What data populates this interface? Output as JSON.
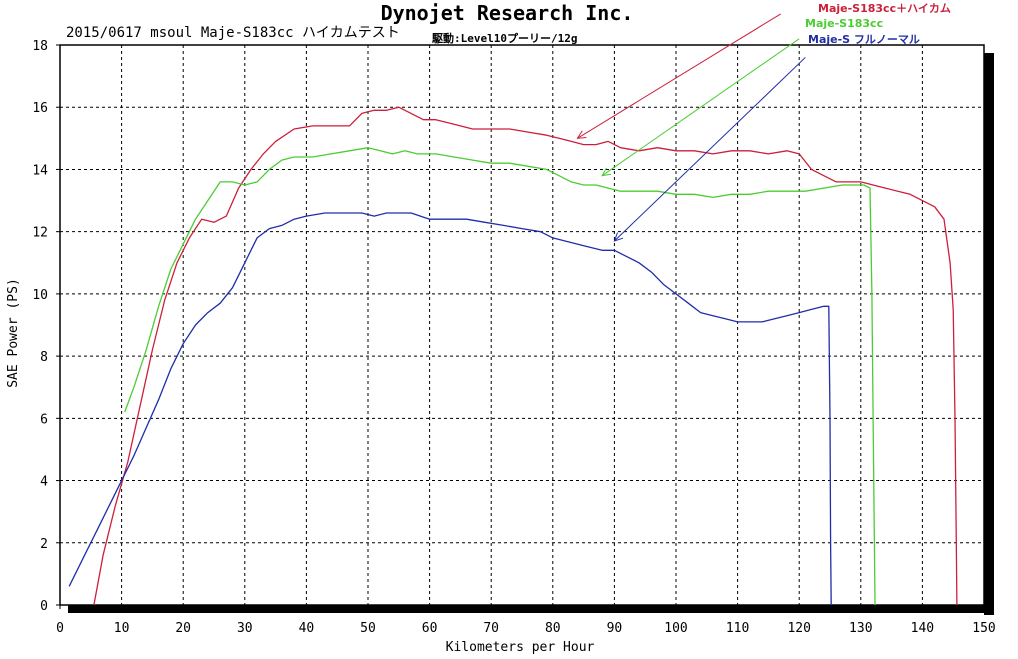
{
  "chart_data": {
    "type": "line",
    "title": "Dynojet  Research  Inc.",
    "subtitle": "2015/0617 msoul Maje-S183cc ハイカムテスト",
    "subtitle2": "駆動:Level10プーリー/12g",
    "xlabel": "Kilometers per Hour",
    "ylabel": "SAE Power (PS)",
    "xlim": [
      0,
      150
    ],
    "ylim": [
      0,
      18
    ],
    "xticks": [
      0,
      10,
      20,
      30,
      40,
      50,
      60,
      70,
      80,
      90,
      100,
      110,
      120,
      130,
      140,
      150
    ],
    "yticks": [
      0,
      2,
      4,
      6,
      8,
      10,
      12,
      14,
      16,
      18
    ],
    "grid": true,
    "legend_position": "top-right",
    "series": [
      {
        "name": "Maje-S183cc＋ハイカム",
        "color": "#cc1f3a",
        "points": [
          [
            5.5,
            0
          ],
          [
            7,
            1.6
          ],
          [
            9,
            3.2
          ],
          [
            11,
            4.6
          ],
          [
            13,
            6.4
          ],
          [
            15,
            8.2
          ],
          [
            17,
            9.8
          ],
          [
            19,
            11
          ],
          [
            21,
            11.8
          ],
          [
            23,
            12.4
          ],
          [
            25,
            12.3
          ],
          [
            27,
            12.5
          ],
          [
            29,
            13.4
          ],
          [
            31,
            14.0
          ],
          [
            33,
            14.5
          ],
          [
            35,
            14.9
          ],
          [
            38,
            15.3
          ],
          [
            41,
            15.4
          ],
          [
            44,
            15.4
          ],
          [
            47,
            15.4
          ],
          [
            49,
            15.8
          ],
          [
            51,
            15.9
          ],
          [
            53,
            15.9
          ],
          [
            55,
            16.0
          ],
          [
            57,
            15.8
          ],
          [
            59,
            15.6
          ],
          [
            61,
            15.6
          ],
          [
            63,
            15.5
          ],
          [
            65,
            15.4
          ],
          [
            67,
            15.3
          ],
          [
            70,
            15.3
          ],
          [
            73,
            15.3
          ],
          [
            76,
            15.2
          ],
          [
            79,
            15.1
          ],
          [
            81,
            15.0
          ],
          [
            83,
            14.9
          ],
          [
            85,
            14.8
          ],
          [
            87,
            14.8
          ],
          [
            89,
            14.9
          ],
          [
            91,
            14.7
          ],
          [
            94,
            14.6
          ],
          [
            97,
            14.7
          ],
          [
            100,
            14.6
          ],
          [
            103,
            14.6
          ],
          [
            106,
            14.5
          ],
          [
            109,
            14.6
          ],
          [
            112,
            14.6
          ],
          [
            115,
            14.5
          ],
          [
            118,
            14.6
          ],
          [
            120,
            14.5
          ],
          [
            122,
            14.0
          ],
          [
            124,
            13.8
          ],
          [
            126,
            13.6
          ],
          [
            128,
            13.6
          ],
          [
            130,
            13.6
          ],
          [
            132,
            13.5
          ],
          [
            134,
            13.4
          ],
          [
            136,
            13.3
          ],
          [
            138,
            13.2
          ],
          [
            140,
            13.0
          ],
          [
            142,
            12.8
          ],
          [
            143.5,
            12.4
          ],
          [
            144.5,
            11.0
          ],
          [
            145,
            9.5
          ],
          [
            145.3,
            6
          ],
          [
            145.5,
            2
          ],
          [
            145.6,
            0
          ]
        ]
      },
      {
        "name": "Maje-S183cc",
        "color": "#4ccc33",
        "points": [
          [
            10.5,
            6.2
          ],
          [
            12,
            7.0
          ],
          [
            14,
            8.2
          ],
          [
            16,
            9.6
          ],
          [
            18,
            10.8
          ],
          [
            20,
            11.6
          ],
          [
            22,
            12.4
          ],
          [
            24,
            13.0
          ],
          [
            26,
            13.6
          ],
          [
            28,
            13.6
          ],
          [
            30,
            13.5
          ],
          [
            32,
            13.6
          ],
          [
            34,
            14.0
          ],
          [
            36,
            14.3
          ],
          [
            38,
            14.4
          ],
          [
            41,
            14.4
          ],
          [
            44,
            14.5
          ],
          [
            47,
            14.6
          ],
          [
            50,
            14.7
          ],
          [
            52,
            14.6
          ],
          [
            54,
            14.5
          ],
          [
            56,
            14.6
          ],
          [
            58,
            14.5
          ],
          [
            61,
            14.5
          ],
          [
            64,
            14.4
          ],
          [
            67,
            14.3
          ],
          [
            70,
            14.2
          ],
          [
            73,
            14.2
          ],
          [
            76,
            14.1
          ],
          [
            79,
            14.0
          ],
          [
            81,
            13.8
          ],
          [
            83,
            13.6
          ],
          [
            85,
            13.5
          ],
          [
            87,
            13.5
          ],
          [
            89,
            13.4
          ],
          [
            91,
            13.3
          ],
          [
            94,
            13.3
          ],
          [
            97,
            13.3
          ],
          [
            100,
            13.2
          ],
          [
            103,
            13.2
          ],
          [
            106,
            13.1
          ],
          [
            109,
            13.2
          ],
          [
            112,
            13.2
          ],
          [
            115,
            13.3
          ],
          [
            118,
            13.3
          ],
          [
            121,
            13.3
          ],
          [
            124,
            13.4
          ],
          [
            127,
            13.5
          ],
          [
            129,
            13.5
          ],
          [
            130.5,
            13.5
          ],
          [
            131.5,
            13.4
          ],
          [
            131.8,
            10
          ],
          [
            132,
            6
          ],
          [
            132.2,
            2
          ],
          [
            132.3,
            0
          ]
        ]
      },
      {
        "name": "Maje-S フルノーマル",
        "color": "#1f2ea8",
        "points": [
          [
            1.5,
            0.6
          ],
          [
            4,
            1.6
          ],
          [
            6,
            2.4
          ],
          [
            8,
            3.2
          ],
          [
            10,
            4.0
          ],
          [
            12,
            4.8
          ],
          [
            14,
            5.7
          ],
          [
            16,
            6.6
          ],
          [
            18,
            7.6
          ],
          [
            20,
            8.4
          ],
          [
            22,
            9.0
          ],
          [
            24,
            9.4
          ],
          [
            26,
            9.7
          ],
          [
            28,
            10.2
          ],
          [
            30,
            11.0
          ],
          [
            32,
            11.8
          ],
          [
            34,
            12.1
          ],
          [
            36,
            12.2
          ],
          [
            38,
            12.4
          ],
          [
            40,
            12.5
          ],
          [
            43,
            12.6
          ],
          [
            46,
            12.6
          ],
          [
            49,
            12.6
          ],
          [
            51,
            12.5
          ],
          [
            53,
            12.6
          ],
          [
            55,
            12.6
          ],
          [
            57,
            12.6
          ],
          [
            60,
            12.4
          ],
          [
            63,
            12.4
          ],
          [
            66,
            12.4
          ],
          [
            69,
            12.3
          ],
          [
            72,
            12.2
          ],
          [
            75,
            12.1
          ],
          [
            78,
            12.0
          ],
          [
            80,
            11.8
          ],
          [
            82,
            11.7
          ],
          [
            84,
            11.6
          ],
          [
            86,
            11.5
          ],
          [
            88,
            11.4
          ],
          [
            90,
            11.4
          ],
          [
            92,
            11.2
          ],
          [
            94,
            11.0
          ],
          [
            96,
            10.7
          ],
          [
            98,
            10.3
          ],
          [
            100,
            10.0
          ],
          [
            102,
            9.7
          ],
          [
            104,
            9.4
          ],
          [
            106,
            9.3
          ],
          [
            108,
            9.2
          ],
          [
            110,
            9.1
          ],
          [
            112,
            9.1
          ],
          [
            114,
            9.1
          ],
          [
            116,
            9.2
          ],
          [
            118,
            9.3
          ],
          [
            120,
            9.4
          ],
          [
            122,
            9.5
          ],
          [
            124,
            9.6
          ],
          [
            124.8,
            9.6
          ],
          [
            125,
            6
          ],
          [
            125.1,
            2
          ],
          [
            125.2,
            0
          ]
        ]
      }
    ],
    "annotations": [
      {
        "label": "Maje-S183cc＋ハイカム",
        "arrow_from": [
          117,
          19.0
        ],
        "arrow_to": [
          84,
          15.0
        ]
      },
      {
        "label": "Maje-S183cc",
        "arrow_from": [
          120,
          18.2
        ],
        "arrow_to": [
          88,
          13.8
        ]
      },
      {
        "label": "Maje-S フルノーマル",
        "arrow_from": [
          121,
          17.6
        ],
        "arrow_to": [
          90,
          11.7
        ]
      }
    ]
  }
}
